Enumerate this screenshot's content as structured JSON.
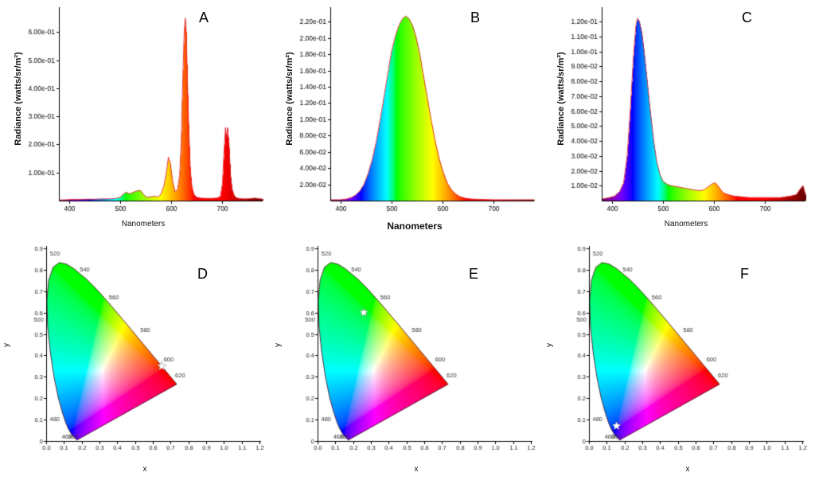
{
  "page": {
    "background": "#ffffff"
  },
  "cie_locus": [
    [
      380,
      0.1741,
      0.005
    ],
    [
      390,
      0.1738,
      0.0049
    ],
    [
      400,
      0.1733,
      0.0048
    ],
    [
      410,
      0.1726,
      0.0048
    ],
    [
      420,
      0.1714,
      0.0051
    ],
    [
      430,
      0.1689,
      0.0069
    ],
    [
      440,
      0.1644,
      0.0109
    ],
    [
      450,
      0.1566,
      0.0177
    ],
    [
      460,
      0.144,
      0.0297
    ],
    [
      470,
      0.1241,
      0.0578
    ],
    [
      475,
      0.1096,
      0.0868
    ],
    [
      480,
      0.0913,
      0.1327
    ],
    [
      485,
      0.0687,
      0.2007
    ],
    [
      490,
      0.0454,
      0.295
    ],
    [
      495,
      0.0235,
      0.4127
    ],
    [
      500,
      0.0082,
      0.5384
    ],
    [
      505,
      0.0039,
      0.6548
    ],
    [
      510,
      0.0139,
      0.7502
    ],
    [
      515,
      0.0389,
      0.812
    ],
    [
      520,
      0.0743,
      0.8338
    ],
    [
      525,
      0.1142,
      0.8262
    ],
    [
      530,
      0.1547,
      0.8059
    ],
    [
      535,
      0.1896,
      0.7816
    ],
    [
      540,
      0.2296,
      0.7543
    ],
    [
      545,
      0.2658,
      0.7243
    ],
    [
      550,
      0.3016,
      0.6923
    ],
    [
      555,
      0.3373,
      0.6589
    ],
    [
      560,
      0.3731,
      0.6245
    ],
    [
      565,
      0.4087,
      0.5896
    ],
    [
      570,
      0.4441,
      0.5547
    ],
    [
      575,
      0.4788,
      0.5202
    ],
    [
      580,
      0.5125,
      0.4866
    ],
    [
      585,
      0.5448,
      0.4544
    ],
    [
      590,
      0.5752,
      0.4242
    ],
    [
      595,
      0.6029,
      0.3965
    ],
    [
      600,
      0.627,
      0.3725
    ],
    [
      605,
      0.6482,
      0.3514
    ],
    [
      610,
      0.6658,
      0.334
    ],
    [
      615,
      0.6801,
      0.3197
    ],
    [
      620,
      0.6915,
      0.3083
    ],
    [
      630,
      0.7079,
      0.292
    ],
    [
      640,
      0.719,
      0.2809
    ],
    [
      650,
      0.726,
      0.274
    ],
    [
      660,
      0.73,
      0.27
    ],
    [
      670,
      0.732,
      0.268
    ],
    [
      680,
      0.7334,
      0.2666
    ],
    [
      690,
      0.7344,
      0.2656
    ],
    [
      700,
      0.7347,
      0.2653
    ]
  ],
  "chart_data": [
    {
      "type": "area",
      "panel_label": "A",
      "title": "",
      "xlabel": "Nanometers",
      "ylabel": "Radiance (watts/sr/m²)",
      "color_mode": "wavelength-spectrum",
      "xlim": [
        380,
        780
      ],
      "ylim": [
        0,
        0.68
      ],
      "xticks": [
        400,
        500,
        600,
        700
      ],
      "xtick_labels": [
        "400",
        "500",
        "600",
        "700"
      ],
      "yticks": [
        0.1,
        0.2,
        0.3,
        0.4,
        0.5,
        0.6
      ],
      "ytick_labels": [
        "1.00e-01",
        "2.00e-01",
        "3.00e-01",
        "4.00e-01",
        "5.00e-01",
        "6.00e-01"
      ],
      "points": [
        [
          380,
          0.002
        ],
        [
          395,
          0.003
        ],
        [
          405,
          0.004
        ],
        [
          420,
          0.004
        ],
        [
          435,
          0.005
        ],
        [
          450,
          0.005
        ],
        [
          465,
          0.006
        ],
        [
          480,
          0.006
        ],
        [
          492,
          0.008
        ],
        [
          500,
          0.012
        ],
        [
          506,
          0.022
        ],
        [
          512,
          0.03
        ],
        [
          518,
          0.024
        ],
        [
          524,
          0.028
        ],
        [
          532,
          0.034
        ],
        [
          540,
          0.036
        ],
        [
          546,
          0.022
        ],
        [
          552,
          0.012
        ],
        [
          560,
          0.013
        ],
        [
          568,
          0.016
        ],
        [
          574,
          0.012
        ],
        [
          580,
          0.022
        ],
        [
          586,
          0.05
        ],
        [
          591,
          0.1
        ],
        [
          595,
          0.155
        ],
        [
          599,
          0.13
        ],
        [
          603,
          0.07
        ],
        [
          608,
          0.032
        ],
        [
          613,
          0.04
        ],
        [
          617,
          0.09
        ],
        [
          620,
          0.2
        ],
        [
          623,
          0.42
        ],
        [
          626,
          0.6
        ],
        [
          628,
          0.65
        ],
        [
          630,
          0.6
        ],
        [
          632,
          0.45
        ],
        [
          635,
          0.25
        ],
        [
          638,
          0.11
        ],
        [
          641,
          0.05
        ],
        [
          645,
          0.022
        ],
        [
          650,
          0.012
        ],
        [
          658,
          0.009
        ],
        [
          668,
          0.008
        ],
        [
          680,
          0.008
        ],
        [
          690,
          0.009
        ],
        [
          697,
          0.015
        ],
        [
          701,
          0.06
        ],
        [
          704,
          0.17
        ],
        [
          707,
          0.26
        ],
        [
          709,
          0.22
        ],
        [
          711,
          0.26
        ],
        [
          714,
          0.2
        ],
        [
          717,
          0.09
        ],
        [
          720,
          0.04
        ],
        [
          724,
          0.018
        ],
        [
          728,
          0.01
        ],
        [
          735,
          0.007
        ],
        [
          745,
          0.006
        ],
        [
          755,
          0.007
        ],
        [
          765,
          0.009
        ],
        [
          772,
          0.007
        ],
        [
          780,
          0.005
        ]
      ]
    },
    {
      "type": "area",
      "panel_label": "B",
      "title": "",
      "xlabel": "Nanometers",
      "ylabel": "Radiance (watts/sr/m²)",
      "color_mode": "wavelength-spectrum",
      "xlim": [
        380,
        780
      ],
      "ylim": [
        0,
        0.235
      ],
      "xticks": [
        400,
        500,
        600,
        700
      ],
      "xtick_labels": [
        "400",
        "500",
        "600",
        "700"
      ],
      "yticks": [
        0.02,
        0.04,
        0.06,
        0.08,
        0.1,
        0.12,
        0.14,
        0.16,
        0.18,
        0.2,
        0.22
      ],
      "ytick_labels": [
        "2.00e-02",
        "4.00e-02",
        "6.00e-02",
        "8.00e-02",
        "1.00e-01",
        "1.20e-01",
        "1.40e-01",
        "1.60e-01",
        "1.80e-01",
        "2.00e-01",
        "2.20e-01"
      ],
      "points": [
        [
          380,
          0.001
        ],
        [
          400,
          0.001
        ],
        [
          412,
          0.002
        ],
        [
          422,
          0.004
        ],
        [
          430,
          0.007
        ],
        [
          438,
          0.012
        ],
        [
          446,
          0.02
        ],
        [
          454,
          0.033
        ],
        [
          462,
          0.05
        ],
        [
          470,
          0.072
        ],
        [
          478,
          0.1
        ],
        [
          486,
          0.13
        ],
        [
          494,
          0.16
        ],
        [
          500,
          0.183
        ],
        [
          508,
          0.203
        ],
        [
          515,
          0.216
        ],
        [
          522,
          0.224
        ],
        [
          528,
          0.227
        ],
        [
          534,
          0.224
        ],
        [
          541,
          0.216
        ],
        [
          548,
          0.202
        ],
        [
          555,
          0.182
        ],
        [
          562,
          0.157
        ],
        [
          570,
          0.128
        ],
        [
          578,
          0.099
        ],
        [
          586,
          0.073
        ],
        [
          594,
          0.051
        ],
        [
          602,
          0.034
        ],
        [
          610,
          0.021
        ],
        [
          618,
          0.013
        ],
        [
          626,
          0.008
        ],
        [
          634,
          0.005
        ],
        [
          644,
          0.003
        ],
        [
          656,
          0.002
        ],
        [
          672,
          0.0015
        ],
        [
          700,
          0.001
        ],
        [
          740,
          0.001
        ],
        [
          780,
          0.001
        ]
      ]
    },
    {
      "type": "area",
      "panel_label": "C",
      "title": "",
      "xlabel": "Nanometers",
      "ylabel": "Radiance (watts/sr/m²)",
      "color_mode": "wavelength-spectrum",
      "xlim": [
        380,
        780
      ],
      "ylim": [
        0,
        0.128
      ],
      "xticks": [
        400,
        500,
        600,
        700
      ],
      "xtick_labels": [
        "400",
        "500",
        "600",
        "700"
      ],
      "yticks": [
        0.01,
        0.02,
        0.03,
        0.04,
        0.05,
        0.06,
        0.07,
        0.08,
        0.09,
        0.1,
        0.11,
        0.12
      ],
      "ytick_labels": [
        "1.00e-02",
        "2.00e-02",
        "3.00e-02",
        "4.00e-02",
        "5.00e-02",
        "6.00e-02",
        "7.00e-02",
        "8.00e-02",
        "9.00e-02",
        "1.00e-01",
        "1.10e-01",
        "1.20e-01"
      ],
      "points": [
        [
          380,
          0.001
        ],
        [
          395,
          0.002
        ],
        [
          405,
          0.003
        ],
        [
          415,
          0.006
        ],
        [
          423,
          0.012
        ],
        [
          430,
          0.03
        ],
        [
          436,
          0.06
        ],
        [
          442,
          0.095
        ],
        [
          447,
          0.117
        ],
        [
          450,
          0.122
        ],
        [
          454,
          0.12
        ],
        [
          459,
          0.112
        ],
        [
          464,
          0.098
        ],
        [
          470,
          0.078
        ],
        [
          476,
          0.058
        ],
        [
          482,
          0.04
        ],
        [
          488,
          0.026
        ],
        [
          494,
          0.018
        ],
        [
          500,
          0.013
        ],
        [
          508,
          0.011
        ],
        [
          516,
          0.01
        ],
        [
          524,
          0.0095
        ],
        [
          532,
          0.009
        ],
        [
          540,
          0.0085
        ],
        [
          548,
          0.008
        ],
        [
          556,
          0.0075
        ],
        [
          564,
          0.007
        ],
        [
          572,
          0.0068
        ],
        [
          580,
          0.007
        ],
        [
          588,
          0.009
        ],
        [
          596,
          0.011
        ],
        [
          602,
          0.012
        ],
        [
          608,
          0.01
        ],
        [
          614,
          0.007
        ],
        [
          620,
          0.005
        ],
        [
          628,
          0.004
        ],
        [
          640,
          0.003
        ],
        [
          655,
          0.0025
        ],
        [
          670,
          0.002
        ],
        [
          690,
          0.002
        ],
        [
          710,
          0.002
        ],
        [
          730,
          0.002
        ],
        [
          750,
          0.003
        ],
        [
          762,
          0.004
        ],
        [
          770,
          0.008
        ],
        [
          775,
          0.01
        ],
        [
          780,
          0.004
        ]
      ]
    },
    {
      "type": "scatter",
      "panel_label": "D",
      "title": "",
      "diagram": "CIE 1931 chromaticity",
      "xlabel": "x",
      "ylabel": "y",
      "xlim": [
        0,
        1.2
      ],
      "ylim": [
        0,
        0.9
      ],
      "xticks": [
        0,
        0.1,
        0.2,
        0.3,
        0.4,
        0.5,
        0.6,
        0.7,
        0.8,
        0.9,
        1.0,
        1.1,
        1.2
      ],
      "xtick_labels": [
        "0.0",
        "0.1",
        "0.2",
        "0.3",
        "0.4",
        "0.5",
        "0.6",
        "0.7",
        "0.8",
        "0.9",
        "1.0",
        "1.1",
        "1.2"
      ],
      "yticks": [
        0,
        0.1,
        0.2,
        0.3,
        0.4,
        0.5,
        0.6,
        0.7,
        0.8,
        0.9
      ],
      "ytick_labels": [
        "0",
        "0.1",
        "0.2",
        "0.3",
        "0.4",
        "0.5",
        "0.6",
        "0.7",
        "0.8",
        "0.9"
      ],
      "locus_label_nms": [
        380,
        460,
        480,
        500,
        520,
        540,
        560,
        580,
        600,
        620
      ],
      "marker": {
        "x": 0.65,
        "y": 0.35,
        "shape": "star",
        "color": "#ffffff"
      }
    },
    {
      "type": "scatter",
      "panel_label": "E",
      "title": "",
      "diagram": "CIE 1931 chromaticity",
      "xlabel": "x",
      "ylabel": "y",
      "xlim": [
        0,
        1.2
      ],
      "ylim": [
        0,
        0.9
      ],
      "xticks": [
        0,
        0.1,
        0.2,
        0.3,
        0.4,
        0.5,
        0.6,
        0.7,
        0.8,
        0.9,
        1.0,
        1.1,
        1.2
      ],
      "xtick_labels": [
        "0.0",
        "0.1",
        "0.2",
        "0.3",
        "0.4",
        "0.5",
        "0.6",
        "0.7",
        "0.8",
        "0.9",
        "1.0",
        "1.1",
        "1.2"
      ],
      "yticks": [
        0,
        0.1,
        0.2,
        0.3,
        0.4,
        0.5,
        0.6,
        0.7,
        0.8,
        0.9
      ],
      "ytick_labels": [
        "0",
        "0.1",
        "0.2",
        "0.3",
        "0.4",
        "0.5",
        "0.6",
        "0.7",
        "0.8",
        "0.9"
      ],
      "locus_label_nms": [
        380,
        460,
        480,
        500,
        520,
        540,
        560,
        580,
        600,
        620
      ],
      "marker": {
        "x": 0.26,
        "y": 0.6,
        "shape": "star",
        "color": "#ffffff"
      }
    },
    {
      "type": "scatter",
      "panel_label": "F",
      "title": "",
      "diagram": "CIE 1931 chromaticity",
      "xlabel": "x",
      "ylabel": "y",
      "xlim": [
        0,
        1.2
      ],
      "ylim": [
        0,
        0.9
      ],
      "xticks": [
        0,
        0.1,
        0.2,
        0.3,
        0.4,
        0.5,
        0.6,
        0.7,
        0.8,
        0.9,
        1.0,
        1.1,
        1.2
      ],
      "xtick_labels": [
        "0.0",
        "0.1",
        "0.2",
        "0.3",
        "0.4",
        "0.5",
        "0.6",
        "0.7",
        "0.8",
        "0.9",
        "1.0",
        "1.1",
        "1.2"
      ],
      "yticks": [
        0,
        0.1,
        0.2,
        0.3,
        0.4,
        0.5,
        0.6,
        0.7,
        0.8,
        0.9
      ],
      "ytick_labels": [
        "0",
        "0.1",
        "0.2",
        "0.3",
        "0.4",
        "0.5",
        "0.6",
        "0.7",
        "0.8",
        "0.9"
      ],
      "locus_label_nms": [
        380,
        460,
        480,
        500,
        520,
        540,
        560,
        580,
        600,
        620
      ],
      "marker": {
        "x": 0.155,
        "y": 0.07,
        "shape": "star",
        "color": "#ffffff"
      }
    }
  ]
}
